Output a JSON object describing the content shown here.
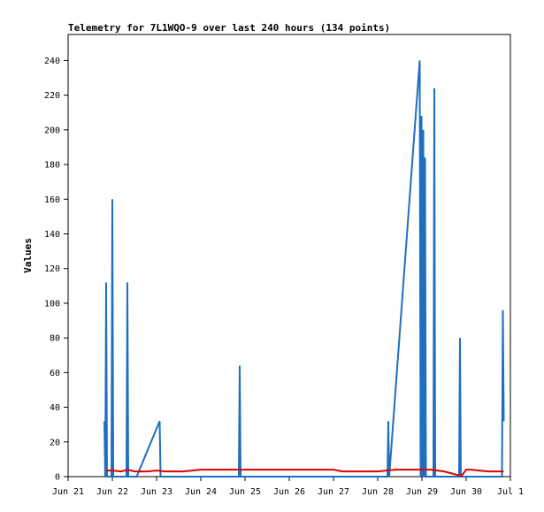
{
  "chart_data": {
    "type": "line",
    "title": "Telemetry for 7L1WQO-9 over last 240 hours (134 points)",
    "xlabel": "",
    "ylabel": "Values",
    "x_ticks": [
      "Jun 21",
      "Jun 22",
      "Jun 23",
      "Jun 24",
      "Jun 25",
      "Jun 26",
      "Jun 27",
      "Jun 28",
      "Jun 29",
      "Jun 30",
      "Jul 1"
    ],
    "xlim": [
      0,
      10
    ],
    "y_ticks": [
      0,
      20,
      40,
      60,
      80,
      100,
      120,
      140,
      160,
      180,
      200,
      220,
      240
    ],
    "ylim": [
      0,
      255
    ],
    "grid": false,
    "series": [
      {
        "color": "#1f6fc0",
        "x": [
          0.82,
          0.84,
          0.86,
          0.88,
          0.98,
          1.0,
          1.02,
          1.32,
          1.34,
          1.36,
          1.55,
          2.07,
          2.09,
          3.86,
          3.88,
          3.9,
          7.22,
          7.24,
          7.26,
          7.95,
          7.97,
          7.99,
          8.01,
          8.03,
          8.05,
          8.07,
          8.09,
          8.26,
          8.28,
          8.3,
          8.84,
          8.86,
          8.88,
          9.81,
          9.83,
          9.85
        ],
        "y": [
          32,
          0,
          112,
          0,
          0,
          160,
          0,
          0,
          112,
          0,
          0,
          32,
          0,
          0,
          64,
          0,
          0,
          32,
          0,
          240,
          0,
          208,
          0,
          200,
          0,
          184,
          0,
          0,
          224,
          0,
          0,
          80,
          0,
          0,
          96,
          32
        ]
      },
      {
        "color": "#e00000",
        "x": [
          0.86,
          1.0,
          1.2,
          1.35,
          1.5,
          1.8,
          2.0,
          2.2,
          2.6,
          3.0,
          4.0,
          5.0,
          6.0,
          6.2,
          7.0,
          7.4,
          7.8,
          8.2,
          8.5,
          8.8,
          8.9,
          9.0,
          9.1,
          9.5,
          9.85
        ],
        "y": [
          3.5,
          3.5,
          3,
          4,
          3,
          3,
          3.5,
          3,
          3,
          4,
          4,
          4,
          4,
          3,
          3,
          4,
          4,
          4,
          3,
          1,
          0.5,
          4,
          4,
          3,
          3
        ]
      }
    ]
  }
}
